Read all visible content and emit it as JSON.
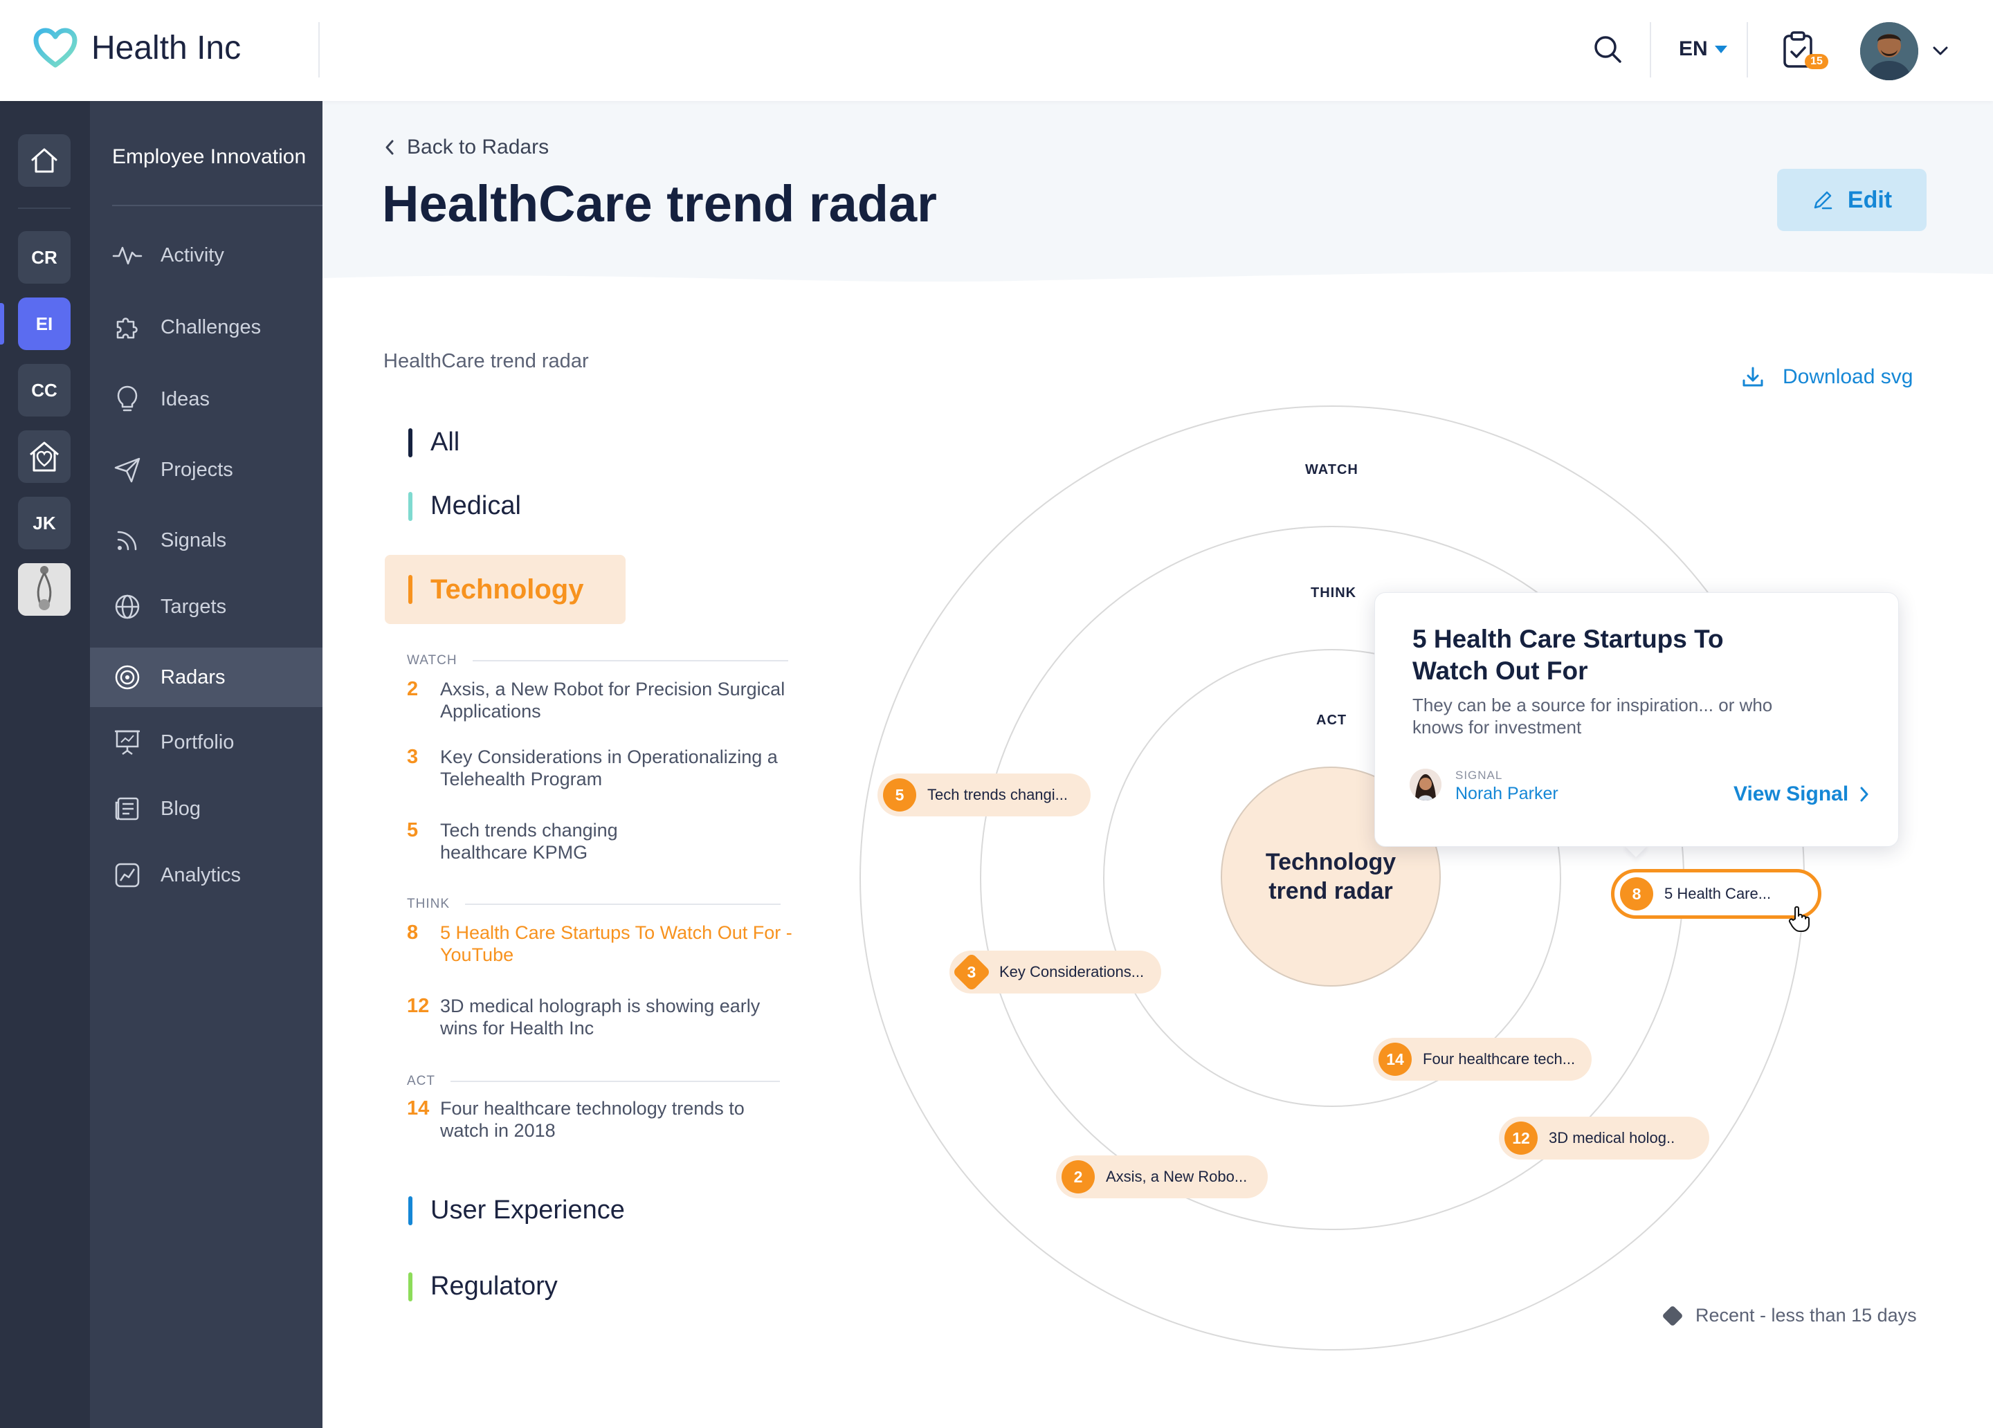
{
  "app": {
    "name": "Health Inc"
  },
  "topbar": {
    "language": "EN",
    "tasks_badge": "15"
  },
  "rail": {
    "items": [
      "CR",
      "EI",
      "CC",
      "JK"
    ]
  },
  "nav": {
    "workspace": "Employee Innovation",
    "items": [
      {
        "label": "Activity",
        "icon": "activity-icon"
      },
      {
        "label": "Challenges",
        "icon": "puzzle-icon"
      },
      {
        "label": "Ideas",
        "icon": "lightbulb-icon"
      },
      {
        "label": "Projects",
        "icon": "paper-plane-icon"
      },
      {
        "label": "Signals",
        "icon": "rss-icon"
      },
      {
        "label": "Targets",
        "icon": "globe-icon"
      },
      {
        "label": "Radars",
        "icon": "radar-icon"
      },
      {
        "label": "Portfolio",
        "icon": "presentation-icon"
      },
      {
        "label": "Blog",
        "icon": "blog-icon"
      },
      {
        "label": "Analytics",
        "icon": "analytics-icon"
      }
    ],
    "active": "Radars"
  },
  "header": {
    "back_label": "Back to Radars",
    "title": "HealthCare trend radar",
    "edit_label": "Edit"
  },
  "content": {
    "subtitle": "HealthCare trend radar",
    "download_label": "Download svg",
    "categories": [
      {
        "label": "All",
        "color": "#15213f"
      },
      {
        "label": "Medical",
        "color": "#7fdad0"
      },
      {
        "label": "Technology",
        "color": "#f7921e"
      },
      {
        "label": "User Experience",
        "color": "#1587d6"
      },
      {
        "label": "Regulatory",
        "color": "#8ddc5a"
      }
    ],
    "groups": {
      "watch": {
        "label": "WATCH",
        "items": [
          {
            "num": "2",
            "text": "Axsis, a New Robot for Precision Surgical Applications"
          },
          {
            "num": "3",
            "text": "Key Considerations in Operationalizing a Telehealth Program"
          },
          {
            "num": "5",
            "text": "Tech trends changing healthcare KPMG"
          }
        ]
      },
      "think": {
        "label": "THINK",
        "items": [
          {
            "num": "8",
            "text": "5 Health Care Startups To Watch Out For - YouTube"
          },
          {
            "num": "12",
            "text": "3D medical holograph is showing early wins for Health Inc"
          }
        ]
      },
      "act": {
        "label": "ACT",
        "items": [
          {
            "num": "14",
            "text": "Four healthcare technology trends to watch in 2018"
          }
        ]
      }
    }
  },
  "radar": {
    "ring_labels": {
      "watch": "WATCH",
      "think": "THINK",
      "act": "ACT"
    },
    "center_label": "Technology trend radar",
    "pills": [
      {
        "num": "5",
        "label": "Tech trends changi..."
      },
      {
        "num": "3",
        "label": "Key Considerations..."
      },
      {
        "num": "8",
        "label": "5 Health Care..."
      },
      {
        "num": "14",
        "label": "Four healthcare tech..."
      },
      {
        "num": "12",
        "label": "3D medical holog.."
      },
      {
        "num": "2",
        "label": "Axsis, a New Robo..."
      }
    ]
  },
  "popup": {
    "title": "5 Health Care Startups To Watch Out For",
    "description": "They can be a source for inspiration... or who knows for investment",
    "signal_label": "SIGNAL",
    "author": "Norah Parker",
    "view_label": "View Signal"
  },
  "legend": {
    "label": "Recent - less than 15 days"
  },
  "colors": {
    "accent": "#f7921e",
    "link": "#1587d6",
    "rail_active": "#5b6cf0",
    "nav_bg": "#363e51",
    "rail_bg": "#2b3243"
  }
}
